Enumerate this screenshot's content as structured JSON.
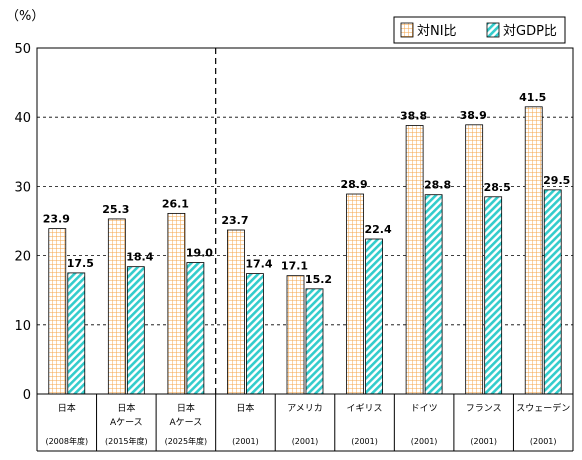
{
  "chart_data": {
    "type": "bar",
    "ylabel": "（%）",
    "ylim": [
      0,
      50
    ],
    "yticks": [
      0,
      10,
      20,
      30,
      40,
      50
    ],
    "grid": true,
    "legend_position": "top-right",
    "categories": [
      {
        "name": "日本",
        "sub": "",
        "period": "(2008年度)"
      },
      {
        "name": "日本",
        "sub": "Aケース",
        "period": "(2015年度)"
      },
      {
        "name": "日本",
        "sub": "Aケース",
        "period": "(2025年度)"
      },
      {
        "name": "日本",
        "sub": "",
        "period": "(2001)"
      },
      {
        "name": "アメリカ",
        "sub": "",
        "period": "(2001)"
      },
      {
        "name": "イギリス",
        "sub": "",
        "period": "(2001)"
      },
      {
        "name": "ドイツ",
        "sub": "",
        "period": "(2001)"
      },
      {
        "name": "フランス",
        "sub": "",
        "period": "(2001)"
      },
      {
        "name": "スウェーデン",
        "sub": "",
        "period": "(2001)"
      }
    ],
    "series": [
      {
        "name": "対NI比",
        "values": [
          23.9,
          25.3,
          26.1,
          23.7,
          17.1,
          28.9,
          38.8,
          38.9,
          41.5
        ],
        "labels": [
          "23.9",
          "25.3",
          "26.1",
          "23.7",
          "17.1",
          "28.9",
          "38.8",
          "38.9",
          "41.5"
        ],
        "color": "#f5a54a",
        "pattern": "grid"
      },
      {
        "name": "対GDP比",
        "values": [
          17.5,
          18.4,
          19.0,
          17.4,
          15.2,
          22.4,
          28.8,
          28.5,
          29.5
        ],
        "labels": [
          "17.5",
          "18.4",
          "19.0",
          "17.4",
          "15.2",
          "22.4",
          "28.8",
          "28.5",
          "29.5"
        ],
        "color": "#33cccc",
        "pattern": "diagonal"
      }
    ],
    "divider_after_index": 2
  }
}
